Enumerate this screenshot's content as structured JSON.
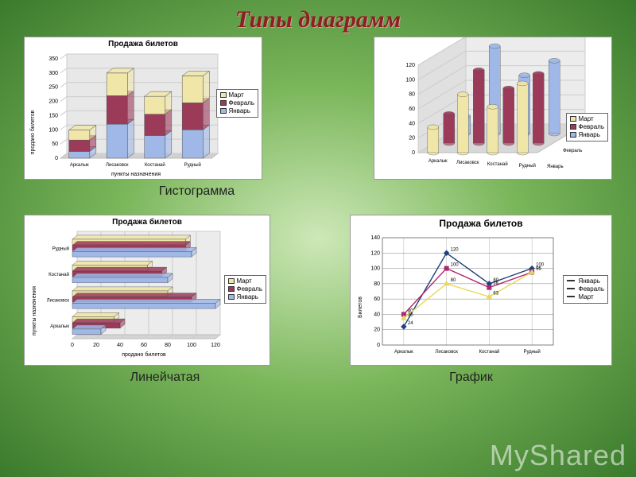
{
  "page": {
    "title": "Типы диаграмм",
    "bg_gradient": [
      "#cde8b8",
      "#7ab65a",
      "#3a7a2c"
    ],
    "watermark": "MyShared"
  },
  "captions": {
    "histogram": "Гистограмма",
    "bar": "Линейчатая",
    "line": "График"
  },
  "months": {
    "jan": "Январь",
    "feb": "Февраль",
    "mar": "Март"
  },
  "cities": [
    "Аркалык",
    "Лисаковск",
    "Костанай",
    "Рудный"
  ],
  "colors": {
    "jan": "#9fb8e8",
    "feb": "#9c3a5a",
    "mar": "#f0e6a8",
    "jan_line": "#20407a",
    "feb_line": "#b02570",
    "mar_line": "#e8d858",
    "grid": "#c0c0c0",
    "axis": "#000000",
    "floor3d": "#d0d0d0",
    "wall3d": "#e0e0e0"
  },
  "stacked_chart": {
    "type": "stacked-bar-3d",
    "title": "Продажа билетов",
    "ylabel": "продано билетов",
    "xlabel": "пункты назначения",
    "ylim": [
      0,
      350
    ],
    "ytick_step": 50,
    "categories": [
      "Аркалык",
      "Лисаковск",
      "Костанай",
      "Рудный"
    ],
    "series": [
      {
        "name": "Январь",
        "color": "#9fb8e8",
        "values": [
          24,
          120,
          80,
          100
        ]
      },
      {
        "name": "Февраль",
        "color": "#9c3a5a",
        "values": [
          40,
          100,
          75,
          95
        ]
      },
      {
        "name": "Март",
        "color": "#f0e6a8",
        "values": [
          35,
          80,
          63,
          95
        ]
      }
    ],
    "bar_width": 0.55
  },
  "cylinder_chart": {
    "type": "cylinder-3d-grouped",
    "title": "",
    "ylim": [
      0,
      120
    ],
    "ytick_step": 20,
    "categories": [
      "Аркалык",
      "Лисаковск",
      "Костанай",
      "Рудный"
    ],
    "depth_series": [
      "Март",
      "Февраль",
      "Январь"
    ],
    "series": [
      {
        "name": "Январь",
        "color": "#9fb8e8",
        "values": [
          24,
          120,
          80,
          100
        ]
      },
      {
        "name": "Февраль",
        "color": "#9c3a5a",
        "values": [
          40,
          100,
          75,
          95
        ]
      },
      {
        "name": "Март",
        "color": "#f0e6a8",
        "values": [
          35,
          80,
          63,
          95
        ]
      }
    ]
  },
  "hbar_chart": {
    "type": "hbar-3d-grouped",
    "title": "Продажа билетов",
    "xlabel": "продано билетов",
    "ylabel": "пункты назначения",
    "xlim": [
      0,
      120
    ],
    "xtick_step": 20,
    "categories": [
      "Аркалык",
      "Лисаковск",
      "Костанай",
      "Рудный"
    ],
    "series": [
      {
        "name": "Март",
        "color": "#f0e6a8",
        "values": [
          35,
          80,
          63,
          95
        ]
      },
      {
        "name": "Февраль",
        "color": "#9c3a5a",
        "values": [
          40,
          100,
          75,
          95
        ]
      },
      {
        "name": "Январь",
        "color": "#9fb8e8",
        "values": [
          24,
          120,
          80,
          100
        ]
      }
    ]
  },
  "line_chart": {
    "type": "line",
    "title": "Продажа билетов",
    "ylabel": "Билетов",
    "ylim": [
      0,
      140
    ],
    "ytick_step": 20,
    "categories": [
      "Аркалык",
      "Лисаковск",
      "Костанай",
      "Рудный"
    ],
    "series": [
      {
        "name": "Январь",
        "color": "#20407a",
        "marker": "diamond",
        "values": [
          24,
          120,
          80,
          100
        ]
      },
      {
        "name": "Февраль",
        "color": "#b02570",
        "marker": "square",
        "values": [
          40,
          100,
          75,
          95
        ]
      },
      {
        "name": "Март",
        "color": "#e8d858",
        "marker": "triangle",
        "values": [
          35,
          80,
          63,
          95
        ]
      }
    ],
    "data_labels": true,
    "grid_color": "#808080"
  }
}
